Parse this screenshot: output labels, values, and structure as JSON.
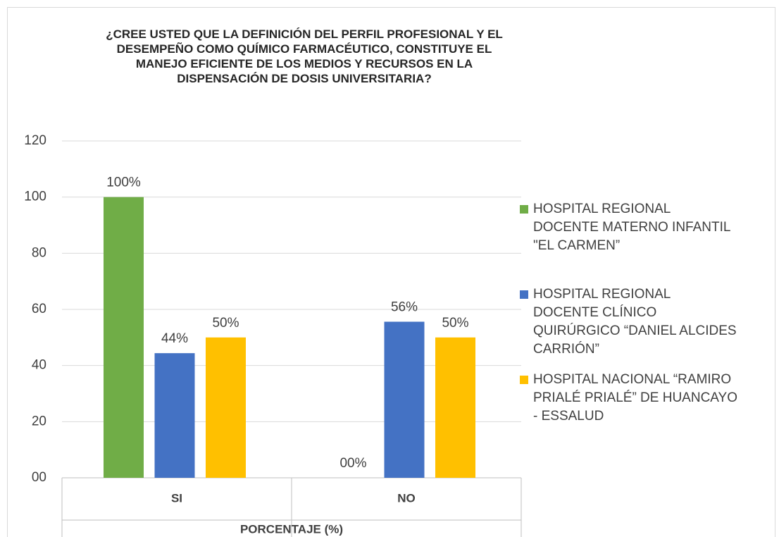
{
  "chart_data": {
    "type": "bar",
    "title": "¿CREE USTED QUE LA DEFINICIÓN DEL PERFIL PROFESIONAL Y EL DESEMPEÑO COMO QUÍMICO FARMACÉUTICO, CONSTITUYE EL MANEJO EFICIENTE DE LOS MEDIOS Y RECURSOS EN LA DISPENSACIÓN DE DOSIS UNIVERSITARIA?",
    "xlabel": "PORCENTAJE (%)",
    "categories": [
      "SI",
      "NO"
    ],
    "series": [
      {
        "name": "HOSPITAL REGIONAL DOCENTE MATERNO INFANTIL \"EL CARMEN”",
        "color": "#70ad47",
        "values": [
          100,
          0
        ],
        "value_labels": [
          "100%",
          "00%"
        ]
      },
      {
        "name": "HOSPITAL REGIONAL DOCENTE CLÍNICO QUIRÚRGICO “DANIEL ALCIDES CARRIÓN”",
        "color": "#4472c4",
        "values": [
          44.4,
          55.6
        ],
        "value_labels": [
          "44%",
          "56%"
        ]
      },
      {
        "name": "HOSPITAL NACIONAL “RAMIRO PRIALÉ PRIALÉ” DE HUANCAYO - ESSALUD",
        "color": "#ffc000",
        "values": [
          50,
          50
        ],
        "value_labels": [
          "50%",
          "50%"
        ]
      }
    ],
    "ylim": [
      0,
      120
    ],
    "yticks": [
      {
        "value": 0,
        "label": "00"
      },
      20,
      40,
      60,
      80,
      100,
      120
    ],
    "grid": true,
    "legend": "right"
  }
}
